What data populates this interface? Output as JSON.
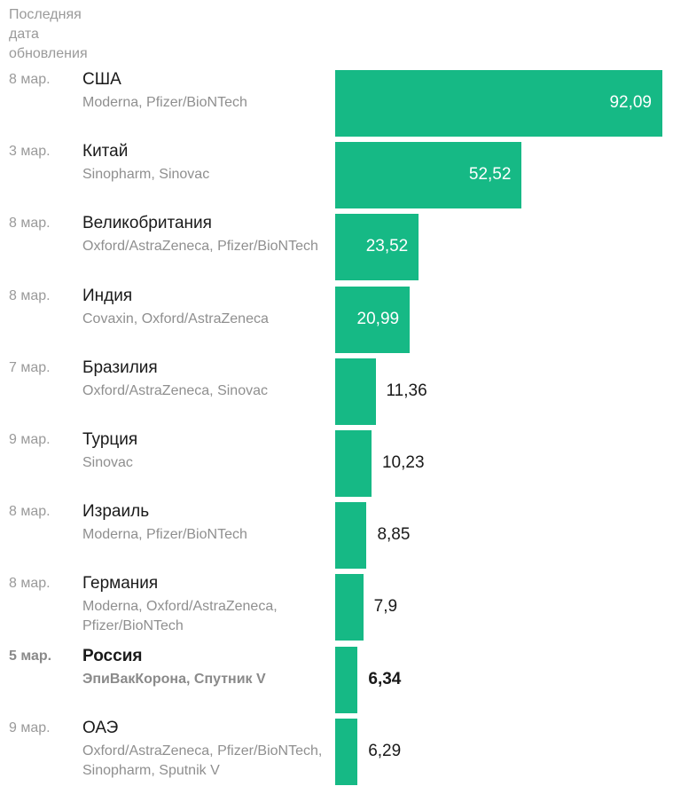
{
  "header": {
    "date_column_label": "Последняя дата обновления"
  },
  "chart_data": {
    "type": "bar",
    "orientation": "horizontal",
    "bar_color": "#16b985",
    "xlim": [
      0,
      92.09
    ],
    "rows": [
      {
        "date": "8 мар.",
        "country": "США",
        "vaccines": "Moderna, Pfizer/BioNTech",
        "value": 92.09,
        "label": "92,09",
        "highlight": false
      },
      {
        "date": "3 мар.",
        "country": "Китай",
        "vaccines": "Sinopharm, Sinovac",
        "value": 52.52,
        "label": "52,52",
        "highlight": false
      },
      {
        "date": "8 мар.",
        "country": "Великобритания",
        "vaccines": "Oxford/AstraZeneca, Pfizer/BioNTech",
        "value": 23.52,
        "label": "23,52",
        "highlight": false
      },
      {
        "date": "8 мар.",
        "country": "Индия",
        "vaccines": "Covaxin, Oxford/AstraZeneca",
        "value": 20.99,
        "label": "20,99",
        "highlight": false
      },
      {
        "date": "7 мар.",
        "country": "Бразилия",
        "vaccines": "Oxford/AstraZeneca, Sinovac",
        "value": 11.36,
        "label": "11,36",
        "highlight": false
      },
      {
        "date": "9 мар.",
        "country": "Турция",
        "vaccines": "Sinovac",
        "value": 10.23,
        "label": "10,23",
        "highlight": false
      },
      {
        "date": "8 мар.",
        "country": "Израиль",
        "vaccines": "Moderna, Pfizer/BioNTech",
        "value": 8.85,
        "label": "8,85",
        "highlight": false
      },
      {
        "date": "8 мар.",
        "country": "Германия",
        "vaccines": "Moderna, Oxford/AstraZeneca, Pfizer/BioNTech",
        "value": 7.9,
        "label": "7,9",
        "highlight": false
      },
      {
        "date": "5 мар.",
        "country": "Россия",
        "vaccines": "ЭпиВакКорона, Спутник V",
        "value": 6.34,
        "label": "6,34",
        "highlight": true
      },
      {
        "date": "9 мар.",
        "country": "ОАЭ",
        "vaccines": "Oxford/AstraZeneca, Pfizer/BioNTech, Sinopharm, Sputnik V",
        "value": 6.29,
        "label": "6,29",
        "highlight": false
      }
    ]
  }
}
